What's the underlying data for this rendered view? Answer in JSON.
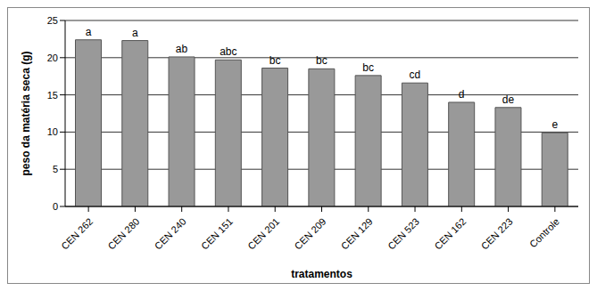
{
  "chart_data": {
    "type": "bar",
    "categories": [
      "CEN 262",
      "CEN 280",
      "CEN 240",
      "CEN 151",
      "CEN 201",
      "CEN 209",
      "CEN 129",
      "CEN 523",
      "CEN 162",
      "CEN 223",
      "Controle"
    ],
    "values": [
      22.4,
      22.3,
      20.1,
      19.7,
      18.6,
      18.5,
      17.6,
      16.6,
      14.0,
      13.3,
      9.9
    ],
    "annotations": [
      "a",
      "a",
      "ab",
      "abc",
      "bc",
      "bc",
      "bc",
      "cd",
      "d",
      "de",
      "e"
    ],
    "color": "#999999",
    "x_label": "tratamentos",
    "y_label": "peso da matéria seca (g)",
    "ylim": [
      0,
      25
    ],
    "yticks": [
      0,
      5,
      10,
      15,
      20,
      25
    ],
    "grid": true
  }
}
